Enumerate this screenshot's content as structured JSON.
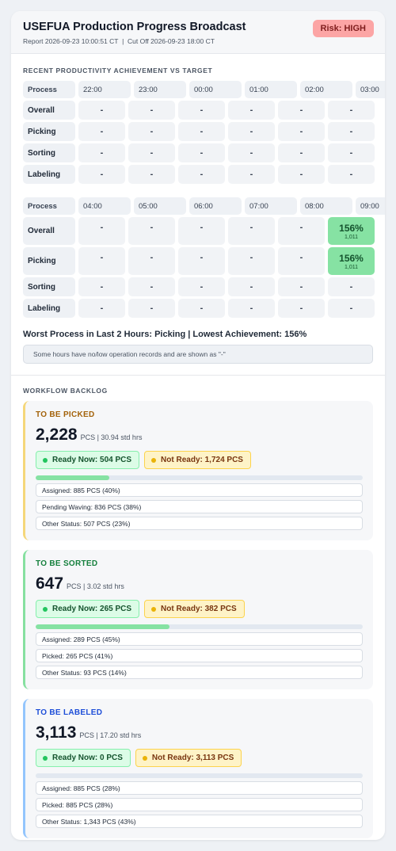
{
  "header": {
    "title": "USEFUA Production Progress Broadcast",
    "report": "Report 2026-09-23 10:00:51 CT  |  Cut Off 2026-09-23 18:00 CT",
    "risk": "Risk: HIGH"
  },
  "productivity": {
    "title": "RECENT PRODUCTIVITY ACHIEVEMENT VS TARGET",
    "tables": [
      {
        "header": [
          "Process",
          "22:00",
          "23:00",
          "00:00",
          "01:00",
          "02:00",
          "03:00"
        ],
        "rows": [
          {
            "name": "Overall",
            "cells": [
              "-",
              "-",
              "-",
              "-",
              "-",
              "-"
            ]
          },
          {
            "name": "Picking",
            "cells": [
              "-",
              "-",
              "-",
              "-",
              "-",
              "-"
            ]
          },
          {
            "name": "Sorting",
            "cells": [
              "-",
              "-",
              "-",
              "-",
              "-",
              "-"
            ]
          },
          {
            "name": "Labeling",
            "cells": [
              "-",
              "-",
              "-",
              "-",
              "-",
              "-"
            ]
          }
        ]
      },
      {
        "header": [
          "Process",
          "04:00",
          "05:00",
          "06:00",
          "07:00",
          "08:00",
          "09:00"
        ],
        "rows": [
          {
            "name": "Overall",
            "cells": [
              "-",
              "-",
              "-",
              "-",
              "-",
              {
                "value": "156%",
                "sub": "1,011"
              }
            ]
          },
          {
            "name": "Picking",
            "cells": [
              "-",
              "-",
              "-",
              "-",
              "-",
              {
                "value": "156%",
                "sub": "1,011"
              }
            ]
          },
          {
            "name": "Sorting",
            "cells": [
              "-",
              "-",
              "-",
              "-",
              "-",
              "-"
            ]
          },
          {
            "name": "Labeling",
            "cells": [
              "-",
              "-",
              "-",
              "-",
              "-",
              "-"
            ]
          }
        ]
      }
    ],
    "worst": "Worst Process in Last 2 Hours: Picking | Lowest Achievement: 156%",
    "note": "Some hours have no/low operation records and are shown as \"-\""
  },
  "backlog": {
    "title": "WORKFLOW BACKLOG",
    "cards": [
      {
        "title": "TO BE PICKED",
        "total": "2,228",
        "detail": "PCS | 30.94 std hrs",
        "ready": "Ready Now: 504 PCS",
        "not_ready": "Not Ready: 1,724 PCS",
        "progress": 22.6,
        "statuses": [
          "Assigned: 885 PCS (40%)",
          "Pending Waving: 836 PCS (38%)",
          "Other Status: 507 PCS (23%)"
        ]
      },
      {
        "title": "TO BE SORTED",
        "total": "647",
        "detail": "PCS | 3.02 std hrs",
        "ready": "Ready Now: 265 PCS",
        "not_ready": "Not Ready: 382 PCS",
        "progress": 41,
        "statuses": [
          "Assigned: 289 PCS (45%)",
          "Picked: 265 PCS (41%)",
          "Other Status: 93 PCS (14%)"
        ]
      },
      {
        "title": "TO BE LABELED",
        "total": "3,113",
        "detail": "PCS | 17.20 std hrs",
        "ready": "Ready Now: 0 PCS",
        "not_ready": "Not Ready: 3,113 PCS",
        "progress": 0,
        "statuses": [
          "Assigned: 885 PCS (28%)",
          "Picked: 885 PCS (28%)",
          "Other Status: 1,343 PCS (43%)"
        ]
      }
    ]
  }
}
